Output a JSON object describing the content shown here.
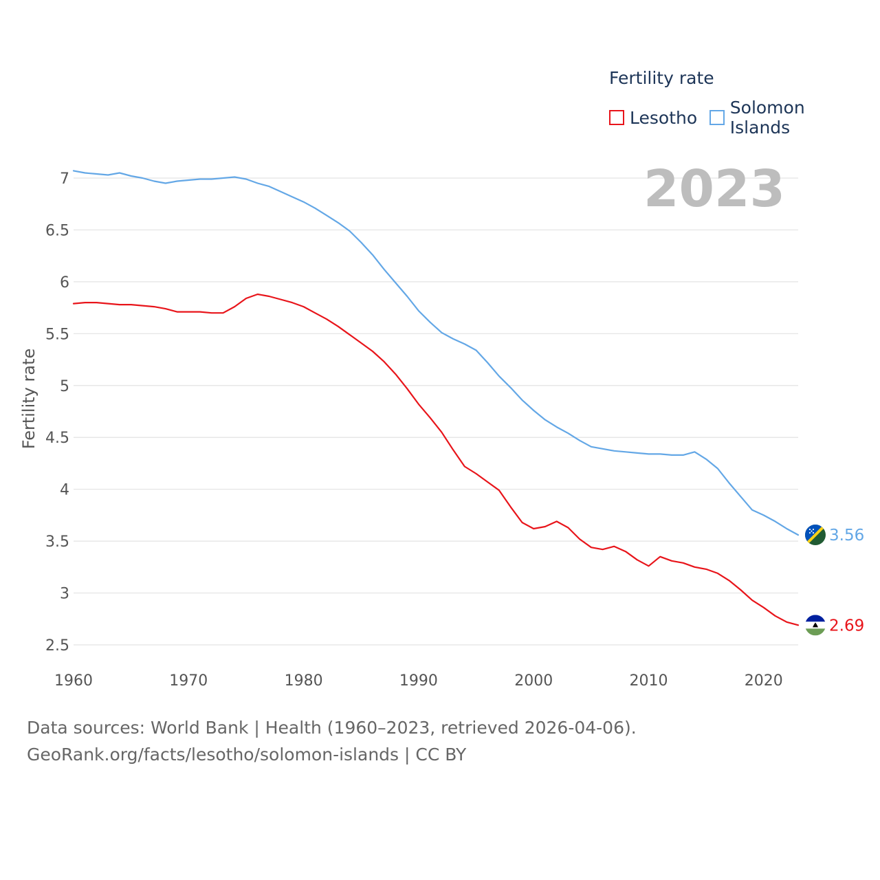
{
  "legend": {
    "title": "Fertility rate",
    "items": [
      {
        "name": "Lesotho",
        "color": "#e8141a"
      },
      {
        "name": "Solomon Islands",
        "color": "#63a7e6"
      }
    ]
  },
  "year_label": "2023",
  "source": {
    "line1": "Data sources: World Bank | Health (1960–2023, retrieved 2026-04-06).",
    "line2": "GeoRank.org/facts/lesotho/solomon-islands | CC BY"
  },
  "chart_data": {
    "type": "line",
    "title": "Fertility rate",
    "xlabel": "",
    "ylabel": "Fertility rate",
    "xlim": [
      1960,
      2023
    ],
    "ylim": [
      2.5,
      7.0
    ],
    "xticks": [
      1960,
      1970,
      1980,
      1990,
      2000,
      2010,
      2020
    ],
    "yticks": [
      2.5,
      3,
      3.5,
      4,
      4.5,
      5,
      5.5,
      6,
      6.5,
      7
    ],
    "grid": true,
    "x": [
      1960,
      1961,
      1962,
      1963,
      1964,
      1965,
      1966,
      1967,
      1968,
      1969,
      1970,
      1971,
      1972,
      1973,
      1974,
      1975,
      1976,
      1977,
      1978,
      1979,
      1980,
      1981,
      1982,
      1983,
      1984,
      1985,
      1986,
      1987,
      1988,
      1989,
      1990,
      1991,
      1992,
      1993,
      1994,
      1995,
      1996,
      1997,
      1998,
      1999,
      2000,
      2001,
      2002,
      2003,
      2004,
      2005,
      2006,
      2007,
      2008,
      2009,
      2010,
      2011,
      2012,
      2013,
      2014,
      2015,
      2016,
      2017,
      2018,
      2019,
      2020,
      2021,
      2022,
      2023
    ],
    "series": [
      {
        "name": "Lesotho",
        "color": "#e8141a",
        "end_label": "2.69",
        "values": [
          5.79,
          5.8,
          5.8,
          5.79,
          5.78,
          5.78,
          5.77,
          5.76,
          5.74,
          5.71,
          5.71,
          5.71,
          5.7,
          5.7,
          5.76,
          5.84,
          5.88,
          5.86,
          5.83,
          5.8,
          5.76,
          5.7,
          5.64,
          5.57,
          5.49,
          5.41,
          5.33,
          5.23,
          5.11,
          4.97,
          4.82,
          4.69,
          4.55,
          4.38,
          4.22,
          4.15,
          4.07,
          3.99,
          3.83,
          3.68,
          3.62,
          3.64,
          3.69,
          3.63,
          3.52,
          3.44,
          3.42,
          3.45,
          3.4,
          3.32,
          3.26,
          3.35,
          3.31,
          3.29,
          3.25,
          3.23,
          3.19,
          3.12,
          3.03,
          2.93,
          2.86,
          2.78,
          2.72,
          2.69
        ]
      },
      {
        "name": "Solomon Islands",
        "color": "#63a7e6",
        "end_label": "3.56",
        "values": [
          7.07,
          7.05,
          7.04,
          7.03,
          7.05,
          7.02,
          7.0,
          6.97,
          6.95,
          6.97,
          6.98,
          6.99,
          6.99,
          7.0,
          7.01,
          6.99,
          6.95,
          6.92,
          6.87,
          6.82,
          6.77,
          6.71,
          6.64,
          6.57,
          6.49,
          6.38,
          6.26,
          6.12,
          5.99,
          5.86,
          5.72,
          5.61,
          5.51,
          5.45,
          5.4,
          5.34,
          5.22,
          5.09,
          4.98,
          4.86,
          4.76,
          4.67,
          4.6,
          4.54,
          4.47,
          4.41,
          4.39,
          4.37,
          4.36,
          4.35,
          4.34,
          4.34,
          4.33,
          4.33,
          4.36,
          4.29,
          4.2,
          4.06,
          3.93,
          3.8,
          3.75,
          3.69,
          3.62,
          3.56
        ]
      }
    ]
  }
}
